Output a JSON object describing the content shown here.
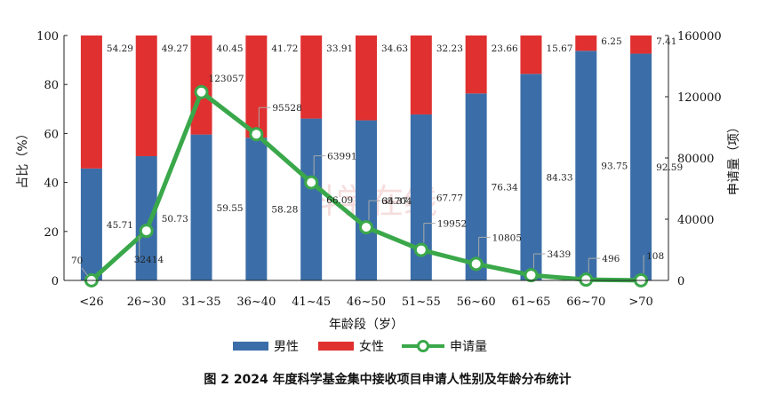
{
  "chart_data": {
    "type": "bar",
    "stacked": true,
    "categories": [
      "<26",
      "26~30",
      "31~35",
      "36~40",
      "41~45",
      "46~50",
      "51~55",
      "56~60",
      "61~65",
      "66~70",
      ">70"
    ],
    "series": [
      {
        "name": "男性",
        "kind": "bar",
        "axis": "left",
        "color": "#3b6ea8",
        "values": [
          45.71,
          50.73,
          59.55,
          58.28,
          66.09,
          65.37,
          67.77,
          76.34,
          84.33,
          93.75,
          92.59
        ]
      },
      {
        "name": "女性",
        "kind": "bar",
        "axis": "left",
        "color": "#e03030",
        "values": [
          54.29,
          49.27,
          40.45,
          41.72,
          33.91,
          34.63,
          32.23,
          23.66,
          15.67,
          6.25,
          7.41
        ]
      },
      {
        "name": "申请量",
        "kind": "line",
        "axis": "right",
        "color": "#3aa84a",
        "values": [
          70,
          32414,
          123057,
          95528,
          63991,
          34704,
          19952,
          10805,
          3439,
          496,
          108
        ]
      }
    ],
    "xlabel": "年龄段（岁）",
    "ylabel": "占比（%）",
    "y2label": "申请量（项）",
    "ylim": [
      0,
      100
    ],
    "y2lim": [
      0,
      160000
    ],
    "yticks": [
      0,
      20,
      40,
      60,
      80,
      100
    ],
    "y2ticks": [
      0,
      40000,
      80000,
      120000,
      160000
    ],
    "legend_position": "bottom",
    "grid": false,
    "caption": "图 2    2024 年度科学基金集中接收项目申请人性别及年龄分布统计",
    "watermark": "科学在线"
  }
}
